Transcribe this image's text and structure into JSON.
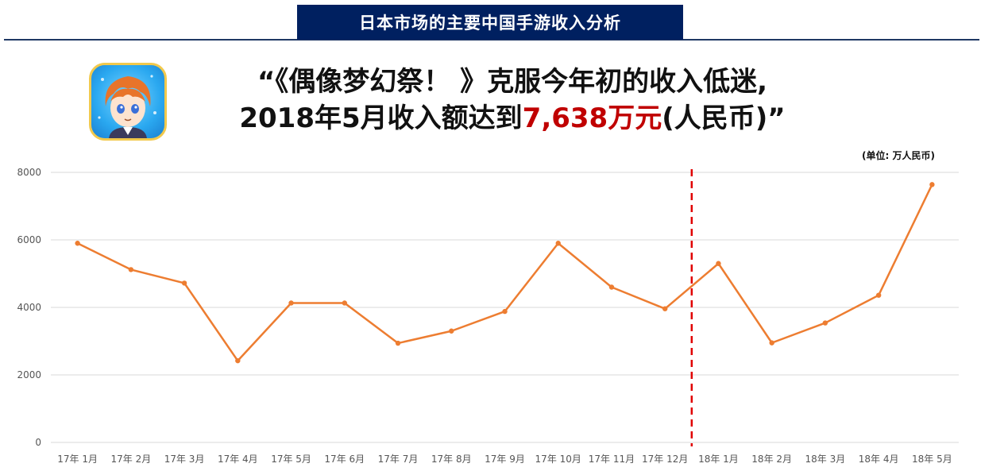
{
  "header": {
    "title": "日本市场的主要中国手游收入分析"
  },
  "headline": {
    "line1": "“《偶像梦幻祭！ 》克服今年初的收入低迷,",
    "line2_prefix": "2018年5月收入额达到",
    "line2_highlight": "7,638万元",
    "line2_suffix": "(人民币)”"
  },
  "unit_label": "(单位: 万人民币)",
  "colors": {
    "line": "#ed7d31",
    "divider": "#e00000",
    "header_bg": "#002060",
    "highlight": "#c00000"
  },
  "chart_data": {
    "type": "line",
    "categories": [
      "17年 1月",
      "17年 2月",
      "17年 3月",
      "17年 4月",
      "17年 5月",
      "17年 6月",
      "17年 7月",
      "17年 8月",
      "17年 9月",
      "17年 10月",
      "17年 11月",
      "17年 12月",
      "18年 1月",
      "18年 2月",
      "18年 3月",
      "18年 4月",
      "18年 5月"
    ],
    "values": [
      5900,
      5120,
      4720,
      2420,
      4130,
      4130,
      2940,
      3300,
      3880,
      5900,
      4600,
      3960,
      5300,
      2950,
      3540,
      4360,
      7638
    ],
    "ylim": [
      0,
      8000
    ],
    "yticks": [
      0,
      2000,
      4000,
      6000,
      8000
    ],
    "grid": true,
    "divider_after": "17年 12月"
  }
}
